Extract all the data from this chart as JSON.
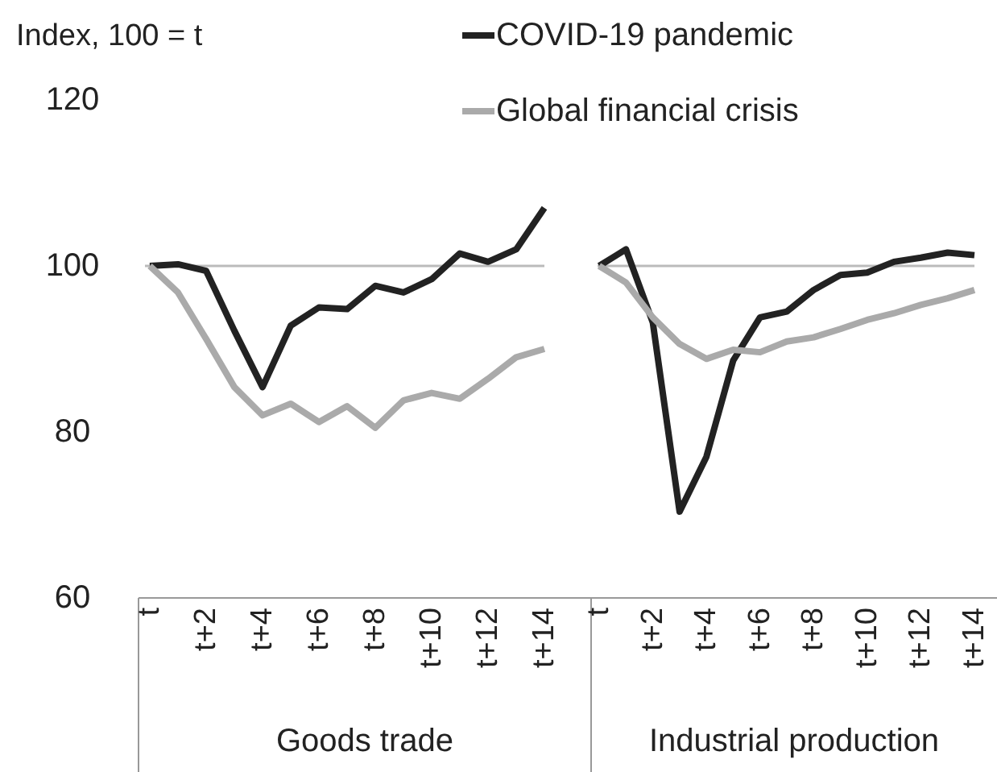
{
  "chart_data": [
    {
      "type": "line",
      "ylabel": "Index, 100 = t",
      "xlabel": "Goods trade",
      "categories": [
        "t",
        null,
        "t+2",
        null,
        "t+4",
        null,
        "t+6",
        null,
        "t+8",
        null,
        "t+10",
        null,
        "t+12",
        null,
        "t+14"
      ],
      "ylim": [
        60,
        120
      ],
      "yticks": [
        60,
        80,
        100,
        120
      ],
      "legend": "top",
      "ref_lines": [
        {
          "axis": "y",
          "value": 100,
          "color": "#bbbbbb"
        }
      ],
      "series": [
        {
          "name": "COVID-19 pandemic",
          "color": "#222222",
          "values": [
            100,
            100.2,
            99.4,
            92.2,
            85.4,
            92.8,
            95,
            94.8,
            97.6,
            96.8,
            98.4,
            101.5,
            100.5,
            102,
            107
          ]
        },
        {
          "name": "Global financial crisis",
          "color": "#aaaaaa",
          "values": [
            100,
            96.8,
            91.2,
            85.4,
            82,
            83.4,
            81.2,
            83.1,
            80.5,
            83.8,
            84.7,
            84,
            86.4,
            89,
            90
          ]
        }
      ]
    },
    {
      "type": "line",
      "xlabel": "Industrial production",
      "categories": [
        "t",
        null,
        "t+2",
        null,
        "t+4",
        null,
        "t+6",
        null,
        "t+8",
        null,
        "t+10",
        null,
        "t+12",
        null,
        "t+14"
      ],
      "ylim": [
        60,
        120
      ],
      "tick_labels": "x",
      "ref_lines": [
        {
          "axis": "y",
          "value": 100,
          "color": "#bbbbbb"
        }
      ],
      "series": [
        {
          "color": "#222222",
          "values": [
            100,
            102,
            93.2,
            70.4,
            77,
            88.6,
            93.8,
            94.5,
            97.1,
            98.9,
            99.2,
            100.5,
            101,
            101.6,
            101.3
          ]
        },
        {
          "color": "#aaaaaa",
          "values": [
            100,
            98,
            93.8,
            90.6,
            88.8,
            89.9,
            89.6,
            90.9,
            91.4,
            92.4,
            93.5,
            94.3,
            95.3,
            96.1,
            97.1
          ]
        }
      ]
    }
  ]
}
